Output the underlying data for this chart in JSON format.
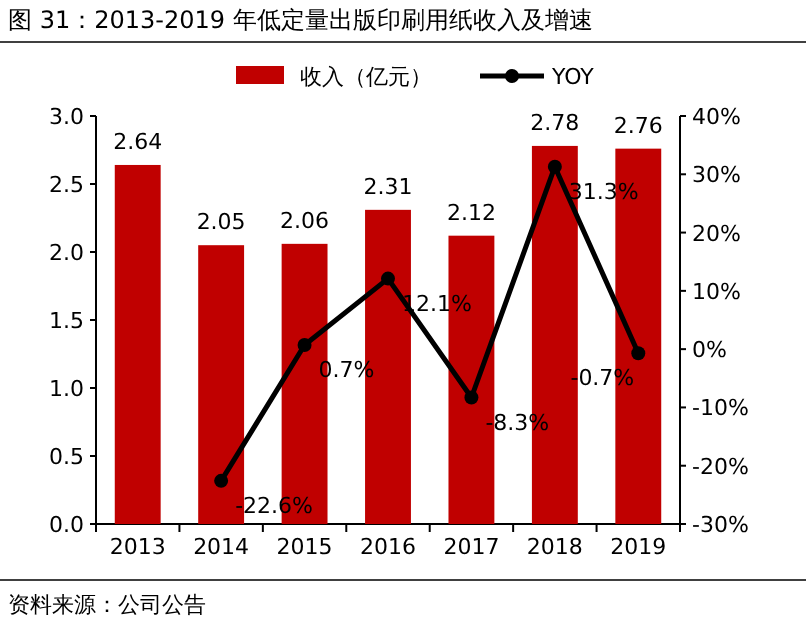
{
  "chart_data": {
    "type": "bar",
    "title": "图 31：2013-2019 年低定量出版印刷用纸收入及增速",
    "categories": [
      "2013",
      "2014",
      "2015",
      "2016",
      "2017",
      "2018",
      "2019"
    ],
    "series": [
      {
        "name": "收入（亿元）",
        "color": "#c00000",
        "values": [
          2.64,
          2.05,
          2.06,
          2.31,
          2.12,
          2.78,
          2.76
        ],
        "data_labels": true
      },
      {
        "name": "YOY",
        "type": "line",
        "axis": "y2",
        "color": "#000000",
        "marker": "circle",
        "values": [
          null,
          -22.6,
          0.7,
          12.1,
          -8.3,
          31.3,
          -0.7
        ],
        "value_labels": [
          null,
          "-22.6%",
          "0.7%",
          "12.1%",
          "-8.3%",
          "31.3%",
          "-0.7%"
        ]
      }
    ],
    "ylim": [
      0,
      3
    ],
    "yticks": [
      "0.0",
      "0.5",
      "1.0",
      "1.5",
      "2.0",
      "2.5",
      "3.0"
    ],
    "y2lim": [
      -30,
      40
    ],
    "y2ticks": [
      {
        "value": -30,
        "label": "-30%"
      },
      {
        "value": -20,
        "label": "-20%"
      },
      {
        "value": -10,
        "label": "-10%"
      },
      {
        "value": 0,
        "label": "0%"
      },
      {
        "value": 10,
        "label": "10%"
      },
      {
        "value": 20,
        "label": "20%"
      },
      {
        "value": 30,
        "label": "30%"
      },
      {
        "value": 40,
        "label": "40%"
      }
    ],
    "legend": "top",
    "grid": false,
    "annotations": [
      "资料来源：公司公告"
    ]
  }
}
